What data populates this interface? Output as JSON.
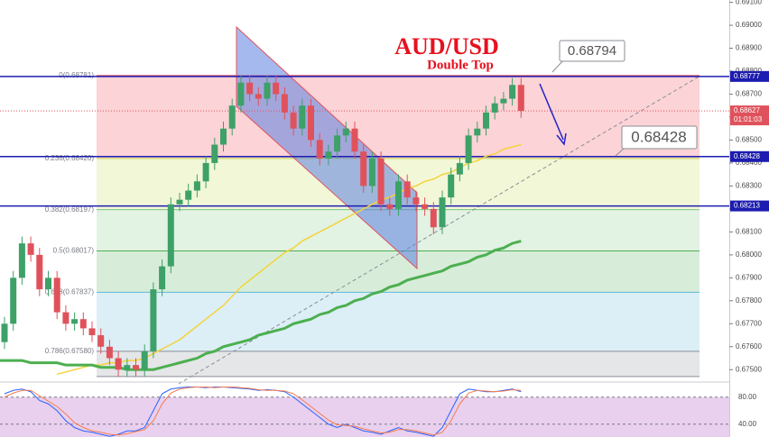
{
  "chart_data": [
    {
      "type": "candlestick",
      "title": "AUD/USD",
      "subtitle": "Double Top",
      "ylim": [
        0.6745,
        0.6911
      ],
      "yticks": [
        {
          "value": 0.675,
          "label": "0.67500"
        },
        {
          "value": 0.676,
          "label": "0.67600"
        },
        {
          "value": 0.677,
          "label": "0.67700"
        },
        {
          "value": 0.678,
          "label": "0.67800"
        },
        {
          "value": 0.679,
          "label": "0.67900"
        },
        {
          "value": 0.68,
          "label": "0.68000"
        },
        {
          "value": 0.681,
          "label": "0.68100"
        },
        {
          "value": 0.682,
          "label": "0.68200"
        },
        {
          "value": 0.683,
          "label": "0.68300"
        },
        {
          "value": 0.684,
          "label": "0.68400"
        },
        {
          "value": 0.685,
          "label": "0.68500"
        },
        {
          "value": 0.686,
          "label": "0.68600"
        },
        {
          "value": 0.687,
          "label": "0.68700"
        },
        {
          "value": 0.688,
          "label": "0.68800"
        },
        {
          "value": 0.689,
          "label": "0.68900"
        },
        {
          "value": 0.69,
          "label": "0.69000"
        },
        {
          "value": 0.691,
          "label": "0.69100"
        }
      ],
      "up_color": "#3da168",
      "down_color": "#e0525b",
      "open": [
        0.6762,
        0.677,
        0.679,
        0.6805,
        0.68,
        0.6785,
        0.679,
        0.6775,
        0.677,
        0.6772,
        0.6768,
        0.6765,
        0.676,
        0.6755,
        0.675,
        0.6752,
        0.675,
        0.6758,
        0.6785,
        0.6795,
        0.6822,
        0.6824,
        0.6828,
        0.6832,
        0.684,
        0.6848,
        0.6855,
        0.6865,
        0.6875,
        0.687,
        0.6868,
        0.6875,
        0.687,
        0.6862,
        0.6855,
        0.6865,
        0.685,
        0.6842,
        0.6845,
        0.6852,
        0.6855,
        0.6845,
        0.683,
        0.6842,
        0.6822,
        0.682,
        0.6832,
        0.6825,
        0.6822,
        0.682,
        0.6812,
        0.6825,
        0.6835,
        0.684,
        0.6852,
        0.6855,
        0.6862,
        0.6866,
        0.6868,
        0.6874
      ],
      "high": [
        0.6773,
        0.6793,
        0.6808,
        0.6808,
        0.6803,
        0.6793,
        0.6793,
        0.6778,
        0.6775,
        0.6775,
        0.6771,
        0.6768,
        0.6763,
        0.6758,
        0.6755,
        0.6755,
        0.6761,
        0.6788,
        0.6798,
        0.6825,
        0.6827,
        0.6831,
        0.6835,
        0.6843,
        0.6851,
        0.6858,
        0.6868,
        0.6878,
        0.6878,
        0.6873,
        0.6878,
        0.6878,
        0.6873,
        0.6865,
        0.6868,
        0.6868,
        0.6853,
        0.6848,
        0.6855,
        0.6858,
        0.6858,
        0.6848,
        0.6845,
        0.6845,
        0.6825,
        0.6835,
        0.6835,
        0.6828,
        0.6825,
        0.6823,
        0.6828,
        0.6838,
        0.6843,
        0.6855,
        0.6858,
        0.6865,
        0.6869,
        0.6871,
        0.6877,
        0.6877
      ],
      "low": [
        0.6759,
        0.6767,
        0.6787,
        0.6797,
        0.6782,
        0.6782,
        0.6772,
        0.6767,
        0.6767,
        0.6765,
        0.6762,
        0.6757,
        0.6752,
        0.6747,
        0.6747,
        0.6747,
        0.6747,
        0.6755,
        0.6782,
        0.6792,
        0.6819,
        0.6821,
        0.6825,
        0.6829,
        0.6837,
        0.6845,
        0.6852,
        0.6862,
        0.6867,
        0.6865,
        0.6865,
        0.6867,
        0.6859,
        0.6852,
        0.6852,
        0.6847,
        0.6839,
        0.6839,
        0.6842,
        0.6849,
        0.6842,
        0.6827,
        0.6827,
        0.6819,
        0.6817,
        0.6817,
        0.6822,
        0.6819,
        0.6817,
        0.6809,
        0.6809,
        0.6822,
        0.6832,
        0.6837,
        0.6849,
        0.6852,
        0.6859,
        0.6863,
        0.6865,
        0.68597
      ],
      "close": [
        0.677,
        0.679,
        0.6805,
        0.68,
        0.6785,
        0.679,
        0.6775,
        0.677,
        0.6772,
        0.6768,
        0.6765,
        0.676,
        0.6755,
        0.675,
        0.6752,
        0.675,
        0.6758,
        0.6785,
        0.6795,
        0.6822,
        0.6824,
        0.6828,
        0.6832,
        0.684,
        0.6848,
        0.6855,
        0.6865,
        0.6875,
        0.687,
        0.6868,
        0.6875,
        0.687,
        0.6862,
        0.6855,
        0.6865,
        0.685,
        0.6842,
        0.6845,
        0.6852,
        0.6855,
        0.6845,
        0.683,
        0.6842,
        0.6822,
        0.682,
        0.6832,
        0.6825,
        0.6822,
        0.682,
        0.6812,
        0.6825,
        0.6835,
        0.684,
        0.6852,
        0.6855,
        0.6862,
        0.6866,
        0.6868,
        0.6874,
        0.68627
      ],
      "overlays": [
        {
          "color": "#f5d33a",
          "width": 1.5,
          "values": [
            null,
            null,
            null,
            null,
            null,
            null,
            0.6748,
            0.6749,
            0.675,
            0.6751,
            0.6752,
            0.6752,
            0.6753,
            0.6753,
            0.6754,
            0.6754,
            0.6755,
            0.6757,
            0.6759,
            0.6761,
            0.6763,
            0.6766,
            0.6769,
            0.6772,
            0.6775,
            0.6778,
            0.6782,
            0.6786,
            0.6789,
            0.6792,
            0.6795,
            0.6798,
            0.6801,
            0.6803,
            0.6806,
            0.6808,
            0.681,
            0.6812,
            0.6814,
            0.6816,
            0.6818,
            0.682,
            0.6822,
            0.6824,
            0.6825,
            0.6827,
            0.6829,
            0.683,
            0.6832,
            0.6833,
            0.6835,
            0.6836,
            0.6838,
            0.684,
            0.6841,
            0.6843,
            0.6844,
            0.6846,
            0.6847,
            0.6848
          ]
        },
        {
          "color": "#4caf50",
          "width": 3,
          "values": [
            0.6754,
            0.6754,
            0.6754,
            0.6753,
            0.6753,
            0.6753,
            0.6753,
            0.6752,
            0.6752,
            0.6752,
            0.6752,
            0.6751,
            0.6751,
            0.6751,
            0.675,
            0.675,
            0.675,
            0.675,
            0.6751,
            0.6752,
            0.6753,
            0.6754,
            0.6755,
            0.6757,
            0.6758,
            0.676,
            0.6761,
            0.6762,
            0.6763,
            0.6765,
            0.6766,
            0.6767,
            0.6768,
            0.677,
            0.6771,
            0.6772,
            0.6774,
            0.6775,
            0.6777,
            0.6778,
            0.678,
            0.6781,
            0.6783,
            0.6784,
            0.6786,
            0.6787,
            0.6789,
            0.679,
            0.6791,
            0.6792,
            0.6793,
            0.6795,
            0.6796,
            0.6797,
            0.6799,
            0.68,
            0.6802,
            0.6803,
            0.6805,
            0.6806
          ]
        }
      ],
      "fib_levels": [
        {
          "label": "0(0.68781)",
          "value": 0.68781,
          "color": "#f23645"
        },
        {
          "label": "0.236(0.68420)",
          "value": 0.6842,
          "color": "#c5d94a"
        },
        {
          "label": "0.382(0.68197)",
          "value": 0.68197,
          "color": "#7cc47f"
        },
        {
          "label": "0.5(0.68017)",
          "value": 0.68017,
          "color": "#4caf50"
        },
        {
          "label": "0.618(0.67837)",
          "value": 0.67837,
          "color": "#5fb8d6"
        },
        {
          "label": "0.786(0.67580)",
          "value": 0.6758,
          "color": "#8a8d96"
        },
        {
          "value": 0.6747,
          "color": "#8a8d96"
        }
      ],
      "price_labels": [
        {
          "value": 0.68777,
          "color": "#1c1cb0"
        },
        {
          "value": 0.68627,
          "color": "#e0525b",
          "countdown": "01:01:03"
        },
        {
          "value": 0.68428,
          "color": "#1c1cb0"
        },
        {
          "value": 0.68213,
          "color": "#1c1cb0"
        }
      ],
      "callouts": [
        {
          "value": 0.68794
        },
        {
          "value": 0.68428
        }
      ]
    },
    {
      "type": "line",
      "ylim": [
        21,
        101
      ],
      "yticks": [
        {
          "value": 80,
          "label": "80.00"
        },
        {
          "value": 40,
          "label": "40.00"
        }
      ],
      "band": [
        20,
        80
      ],
      "band_color": "#9c27b0",
      "series": [
        {
          "color": "#2962ff",
          "values": [
            85,
            90,
            92,
            88,
            75,
            70,
            60,
            45,
            35,
            30,
            28,
            25,
            22,
            25,
            30,
            30,
            35,
            60,
            85,
            92,
            94,
            95,
            95,
            94,
            95,
            95,
            94,
            93,
            92,
            90,
            91,
            90,
            88,
            80,
            70,
            60,
            50,
            40,
            35,
            40,
            35,
            30,
            28,
            25,
            30,
            35,
            30,
            28,
            25,
            22,
            35,
            60,
            85,
            92,
            90,
            88,
            88,
            90,
            92,
            88
          ]
        },
        {
          "color": "#f57c50",
          "values": [
            80,
            86,
            90,
            90,
            82,
            74,
            66,
            55,
            42,
            35,
            30,
            28,
            25,
            24,
            26,
            29,
            32,
            45,
            70,
            86,
            92,
            94,
            95,
            95,
            94,
            95,
            95,
            94,
            93,
            91,
            90,
            90,
            89,
            85,
            76,
            66,
            56,
            46,
            39,
            38,
            37,
            33,
            30,
            27,
            28,
            32,
            32,
            30,
            27,
            24,
            28,
            45,
            70,
            86,
            90,
            89,
            88,
            89,
            91,
            90
          ]
        }
      ]
    }
  ]
}
